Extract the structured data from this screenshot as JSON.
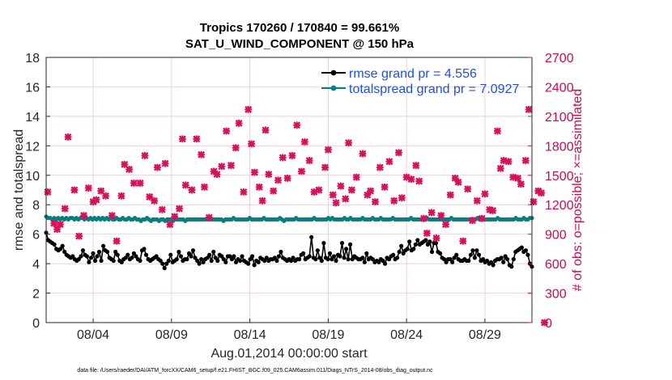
{
  "chart_data": {
    "type": "line",
    "title_lines": [
      "Tropics 170260 / 170840 = 99.661%",
      "SAT_U_WIND_COMPONENT @ 150 hPa"
    ],
    "xlabel": "Aug.01,2014 00:00:00 start",
    "ylabel_left": "rmse and totalspread",
    "ylabel_right": "# of obs: o=possible; ×=assimilated",
    "footnote": "data file: /Users/raeder/DAI/ATM_forcXX/CAM6_setup/f.e21.FHIST_BGC.f09_025.CAM6assim.011/Diags_NTrS_2014-08/obs_diag_output.nc",
    "x_range_days": [
      0,
      31
    ],
    "x_ticks": [
      {
        "day": 3,
        "label": "08/04"
      },
      {
        "day": 8,
        "label": "08/09"
      },
      {
        "day": 13,
        "label": "08/14"
      },
      {
        "day": 18,
        "label": "08/19"
      },
      {
        "day": 23,
        "label": "08/24"
      },
      {
        "day": 28,
        "label": "08/29"
      }
    ],
    "ylim_left": [
      0,
      18
    ],
    "yticks_left": [
      "0",
      "2",
      "4",
      "6",
      "8",
      "10",
      "12",
      "14",
      "16",
      "18"
    ],
    "ylim_right": [
      0,
      2700
    ],
    "yticks_right": [
      "0",
      "300",
      "600",
      "900",
      "1200",
      "1500",
      "1800",
      "2100",
      "2400",
      "2700"
    ],
    "legend": [
      {
        "label": "rmse grand pr = 4.556",
        "color": "#000000"
      },
      {
        "label": "totalspread grand pr = 7.0927",
        "color": "#008080"
      }
    ],
    "series": [
      {
        "name": "rmse",
        "axis": "left",
        "color": "#000000",
        "values": [
          6.1,
          5.6,
          5.5,
          5.4,
          5.3,
          5.0,
          4.9,
          5.0,
          5.2,
          4.8,
          4.6,
          4.5,
          4.4,
          4.5,
          4.3,
          4.2,
          4.3,
          4.5,
          4.9,
          4.6,
          4.5,
          4.1,
          4.4,
          4.7,
          4.2,
          4.5,
          4.8,
          4.2,
          5.2,
          4.9,
          4.8,
          4.4,
          4.3,
          4.2,
          4.8,
          4.6,
          4.2,
          4.1,
          4.3,
          4.4,
          4.6,
          4.3,
          4.4,
          4.7,
          4.5,
          4.3,
          4.2,
          4.9,
          5.0,
          4.6,
          4.3,
          4.2,
          4.3,
          4.4,
          4.5,
          4.3,
          4.2,
          4.0,
          3.7,
          4.0,
          4.2,
          4.6,
          4.1,
          4.2,
          4.3,
          4.8,
          4.5,
          4.2,
          4.3,
          4.3,
          4.7,
          4.5,
          4.9,
          4.4,
          4.2,
          4.0,
          4.3,
          4.1,
          4.3,
          4.4,
          4.6,
          4.2,
          4.8,
          4.4,
          4.2,
          4.6,
          4.5,
          4.3,
          4.1,
          4.5,
          4.5,
          4.3,
          4.5,
          4.1,
          4.3,
          4.2,
          4.5,
          4.2,
          4.1,
          4.0,
          4.3,
          4.5,
          3.9,
          4.2,
          4.1,
          4.4,
          4.3,
          4.2,
          4.4,
          4.2,
          4.3,
          4.3,
          4.4,
          4.2,
          4.5,
          4.8,
          4.4,
          4.3,
          4.2,
          4.3,
          4.2,
          4.4,
          4.2,
          4.3,
          4.3,
          4.6,
          4.7,
          4.3,
          4.4,
          4.5,
          5.8,
          4.4,
          4.3,
          4.9,
          4.4,
          4.2,
          5.4,
          4.4,
          4.3,
          4.7,
          4.3,
          4.5,
          4.2,
          4.6,
          4.5,
          5.4,
          4.4,
          5.0,
          4.3,
          5.3,
          4.3,
          4.5,
          4.4,
          4.3,
          4.3,
          4.4,
          4.1,
          4.7,
          4.3,
          4.4,
          4.3,
          4.1,
          4.2,
          4.1,
          4.3,
          4.2,
          4.0,
          4.4,
          4.3,
          4.5,
          4.6,
          4.3,
          4.4,
          4.8,
          5.2,
          4.7,
          4.9,
          5.0,
          5.5,
          4.9,
          5.0,
          5.3,
          5.6,
          5.3,
          5.4,
          5.5,
          5.6,
          5.3,
          5.5,
          4.8,
          5.4,
          5.4,
          4.8,
          4.7,
          4.4,
          4.3,
          4.1,
          4.3,
          4.3,
          4.1,
          4.4,
          4.6,
          4.3,
          4.2,
          4.2,
          4.3,
          4.2,
          4.2,
          4.6,
          4.9,
          4.4,
          4.9,
          4.6,
          4.2,
          4.3,
          4.1,
          4.2,
          4.0,
          4.1,
          3.9,
          4.2,
          4.3,
          4.3,
          4.4,
          4.1,
          4.5,
          4.3,
          3.9,
          3.8,
          4.3,
          4.8,
          4.9,
          5.0,
          5.1,
          4.8,
          4.9,
          4.6,
          4.0,
          3.8
        ]
      },
      {
        "name": "totalspread",
        "axis": "left",
        "color": "#008080",
        "values": [
          7.2,
          7.1,
          7.1,
          7.0,
          7.1,
          7.0,
          7.1,
          7.0,
          7.1,
          7.0,
          7.1,
          7.0,
          7.1,
          7.1,
          7.0,
          7.1,
          7.0,
          7.1,
          7.1,
          7.0,
          7.1,
          7.0,
          7.1,
          7.0,
          7.1,
          7.0,
          7.1,
          7.0,
          7.1,
          7.0,
          7.1,
          7.0,
          7.1,
          7.0,
          7.0,
          7.1,
          7.0,
          7.0,
          7.1,
          7.0,
          7.0,
          7.1,
          7.0,
          7.0,
          7.1,
          7.0,
          7.0,
          6.9,
          7.0,
          7.0,
          7.1,
          7.0,
          6.9,
          7.0,
          7.0,
          7.0,
          6.9,
          7.0,
          7.0,
          6.9,
          7.0,
          7.0,
          7.0,
          6.9,
          7.0,
          7.0,
          7.0,
          7.0,
          7.0,
          6.9,
          7.0,
          7.0,
          7.0,
          7.0,
          7.0,
          7.0,
          7.0,
          7.0,
          7.0,
          7.0,
          7.0,
          7.0,
          7.0,
          7.0,
          7.0,
          7.0,
          7.0,
          7.0,
          6.9,
          7.0,
          7.0,
          7.0,
          7.0,
          7.1,
          7.0,
          7.0,
          7.0,
          7.0,
          7.0,
          7.0,
          7.0,
          7.1,
          7.0,
          7.0,
          7.0,
          7.0,
          7.0,
          7.0,
          7.1,
          7.0,
          7.0,
          7.0,
          7.0,
          7.0,
          7.0,
          7.0,
          7.1,
          7.0,
          6.9,
          7.0,
          7.0,
          7.0,
          7.0,
          7.0,
          7.1,
          7.0,
          7.0,
          7.0,
          7.0,
          7.0,
          7.0,
          7.0,
          7.0,
          7.1,
          7.0,
          7.0,
          7.0,
          7.0,
          7.0,
          7.0,
          7.1,
          7.0,
          7.1,
          7.0,
          7.0,
          7.0,
          7.0,
          7.0,
          7.1,
          7.0,
          7.0,
          7.1,
          7.0,
          7.0,
          7.0,
          7.0,
          7.0,
          7.1,
          7.0,
          7.0,
          7.0,
          7.0,
          7.1,
          7.0,
          7.0,
          7.0,
          7.1,
          7.0,
          7.0,
          7.0,
          7.0,
          7.0,
          7.1,
          7.0,
          7.0,
          7.0,
          7.0,
          7.0,
          7.0,
          7.0,
          7.0,
          7.1,
          7.0,
          7.0,
          7.0,
          7.0,
          7.0,
          7.0,
          7.0,
          7.1,
          7.0,
          7.0,
          7.0,
          7.0,
          7.0,
          7.0,
          7.0,
          7.0,
          7.0,
          7.0,
          7.0,
          7.1,
          7.0,
          7.0,
          7.0,
          7.0,
          7.0,
          7.0,
          7.0,
          7.0,
          7.0,
          7.0,
          7.0,
          7.0,
          7.1,
          7.0,
          7.0,
          7.0,
          7.0,
          7.0,
          7.0,
          7.0,
          7.0,
          7.0,
          7.1,
          7.0,
          7.0,
          7.0,
          7.0,
          7.0,
          7.0,
          7.0,
          7.0,
          7.1,
          7.0,
          7.0,
          7.0,
          7.1,
          7.0,
          7.0,
          7.1,
          7.1
        ]
      },
      {
        "name": "assimilated obs count",
        "axis": "right",
        "color": "#d6115b",
        "marker": "x",
        "points": [
          [
            0.1,
            1330
          ],
          [
            0.5,
            1010
          ],
          [
            0.7,
            950
          ],
          [
            0.9,
            1000
          ],
          [
            1.2,
            1160
          ],
          [
            1.4,
            1890
          ],
          [
            1.8,
            1350
          ],
          [
            2.1,
            880
          ],
          [
            2.4,
            1090
          ],
          [
            2.7,
            1370
          ],
          [
            3.0,
            1230
          ],
          [
            3.2,
            1250
          ],
          [
            3.5,
            1340
          ],
          [
            3.8,
            1290
          ],
          [
            4.2,
            1090
          ],
          [
            4.5,
            830
          ],
          [
            4.8,
            1290
          ],
          [
            5.0,
            1610
          ],
          [
            5.3,
            1560
          ],
          [
            5.6,
            1420
          ],
          [
            6.0,
            1420
          ],
          [
            6.3,
            1700
          ],
          [
            6.6,
            1280
          ],
          [
            6.9,
            1240
          ],
          [
            7.1,
            1580
          ],
          [
            7.4,
            1150
          ],
          [
            7.6,
            1620
          ],
          [
            7.9,
            1000
          ],
          [
            8.2,
            1080
          ],
          [
            8.5,
            1160
          ],
          [
            8.7,
            1870
          ],
          [
            8.9,
            1400
          ],
          [
            9.3,
            1350
          ],
          [
            9.6,
            1870
          ],
          [
            9.9,
            1710
          ],
          [
            10.1,
            1380
          ],
          [
            10.4,
            1070
          ],
          [
            10.7,
            1540
          ],
          [
            10.9,
            1510
          ],
          [
            11.2,
            1590
          ],
          [
            11.5,
            1950
          ],
          [
            11.8,
            1600
          ],
          [
            12.1,
            1780
          ],
          [
            12.3,
            2030
          ],
          [
            12.6,
            1330
          ],
          [
            12.9,
            2170
          ],
          [
            13.1,
            1820
          ],
          [
            13.3,
            1530
          ],
          [
            13.6,
            1380
          ],
          [
            13.8,
            1240
          ],
          [
            14.0,
            1960
          ],
          [
            14.2,
            1510
          ],
          [
            14.5,
            1340
          ],
          [
            14.8,
            1450
          ],
          [
            15.1,
            1680
          ],
          [
            15.4,
            1470
          ],
          [
            15.7,
            1700
          ],
          [
            16.0,
            2010
          ],
          [
            16.3,
            1540
          ],
          [
            16.5,
            1840
          ],
          [
            16.8,
            1650
          ],
          [
            17.1,
            1330
          ],
          [
            17.4,
            1350
          ],
          [
            17.8,
            1580
          ],
          [
            18.0,
            1760
          ],
          [
            18.3,
            1300
          ],
          [
            18.5,
            1220
          ],
          [
            18.8,
            1390
          ],
          [
            19.1,
            1260
          ],
          [
            19.3,
            1830
          ],
          [
            19.5,
            1350
          ],
          [
            19.8,
            1480
          ],
          [
            20.2,
            1720
          ],
          [
            20.5,
            1300
          ],
          [
            20.7,
            1340
          ],
          [
            21.0,
            1230
          ],
          [
            21.3,
            1580
          ],
          [
            21.6,
            1380
          ],
          [
            21.9,
            1640
          ],
          [
            22.2,
            1240
          ],
          [
            22.5,
            1730
          ],
          [
            22.7,
            1270
          ],
          [
            23.0,
            1480
          ],
          [
            23.3,
            1460
          ],
          [
            23.6,
            1600
          ],
          [
            23.8,
            1440
          ],
          [
            24.1,
            1060
          ],
          [
            24.3,
            910
          ],
          [
            24.6,
            1120
          ],
          [
            24.9,
            860
          ],
          [
            25.2,
            1090
          ],
          [
            25.5,
            1000
          ],
          [
            25.8,
            1300
          ],
          [
            26.1,
            1470
          ],
          [
            26.3,
            1430
          ],
          [
            26.6,
            830
          ],
          [
            26.9,
            1360
          ],
          [
            27.2,
            1040
          ],
          [
            27.5,
            1240
          ],
          [
            27.8,
            1060
          ],
          [
            28.0,
            1310
          ],
          [
            28.3,
            1150
          ],
          [
            28.5,
            1140
          ],
          [
            28.8,
            1950
          ],
          [
            29.0,
            1570
          ],
          [
            29.2,
            1650
          ],
          [
            29.5,
            1640
          ],
          [
            29.8,
            1480
          ],
          [
            30.1,
            1470
          ],
          [
            30.3,
            1410
          ],
          [
            30.6,
            1650
          ],
          [
            30.8,
            2170
          ],
          [
            31.1,
            1230
          ],
          [
            31.4,
            1340
          ],
          [
            31.6,
            1320
          ],
          [
            31.8,
            0
          ]
        ]
      }
    ]
  }
}
